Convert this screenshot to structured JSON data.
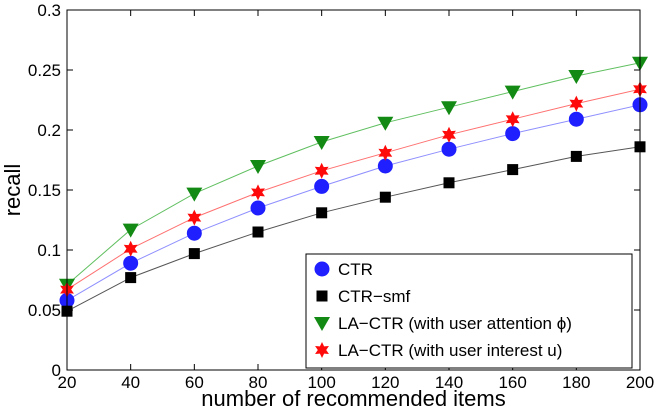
{
  "chart_data": {
    "type": "line",
    "title": "",
    "xlabel": "number of recommended items",
    "ylabel": "recall",
    "x": [
      20,
      40,
      60,
      80,
      100,
      120,
      140,
      160,
      180,
      200
    ],
    "xlim": [
      20,
      200
    ],
    "ylim": [
      0,
      0.3
    ],
    "xticks": [
      "20",
      "40",
      "60",
      "80",
      "100",
      "120",
      "140",
      "160",
      "180",
      "200"
    ],
    "yticks": [
      "0",
      "0.05",
      "0.1",
      "0.15",
      "0.2",
      "0.25",
      "0.3"
    ],
    "grid": false,
    "legend_position": "bottom-right",
    "series": [
      {
        "name": "CTR",
        "color": "#1f1fff",
        "line_color": "#8f8fff",
        "marker": "circle",
        "values": [
          0.058,
          0.089,
          0.114,
          0.135,
          0.153,
          0.17,
          0.184,
          0.197,
          0.209,
          0.221
        ]
      },
      {
        "name": "CTR−smf",
        "color": "#000000",
        "line_color": "#555555",
        "marker": "square",
        "values": [
          0.049,
          0.077,
          0.097,
          0.115,
          0.131,
          0.144,
          0.156,
          0.167,
          0.178,
          0.186
        ]
      },
      {
        "name": "LA−CTR (with user attention ϕ)",
        "color": "#138a13",
        "line_color": "#5fbf5f",
        "marker": "triangle-down",
        "values": [
          0.071,
          0.117,
          0.147,
          0.17,
          0.19,
          0.206,
          0.219,
          0.232,
          0.245,
          0.256
        ]
      },
      {
        "name": "LA−CTR (with user interest u)",
        "color": "#ff0a0a",
        "line_color": "#ff7070",
        "marker": "hexagram",
        "values": [
          0.067,
          0.101,
          0.127,
          0.148,
          0.166,
          0.181,
          0.196,
          0.209,
          0.222,
          0.234
        ]
      }
    ]
  }
}
